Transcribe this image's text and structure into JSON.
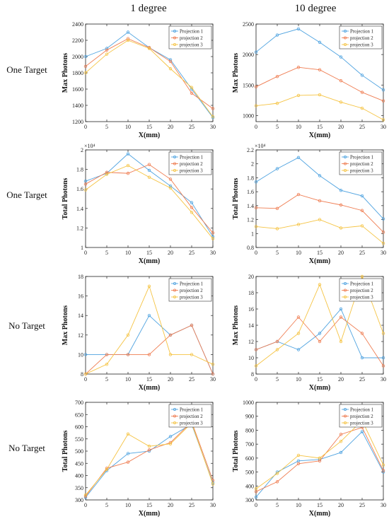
{
  "column_headers": [
    "1 degree",
    "10 degree"
  ],
  "row_labels": [
    "One Target",
    "One Target",
    "No Target",
    "No Target"
  ],
  "colors": {
    "projection_1": "#4fa3e0",
    "projection_2": "#ef7d52",
    "projection_3": "#f5c342"
  },
  "chart_data": [
    {
      "type": "line",
      "xlabel": "X(mm)",
      "ylabel": "Max Photons",
      "x": [
        0,
        5,
        10,
        15,
        20,
        25,
        30
      ],
      "xlim": [
        0,
        30
      ],
      "xticks": [
        0,
        5,
        10,
        15,
        20,
        25,
        30
      ],
      "ylim": [
        1200,
        2400
      ],
      "yticks": [
        1200,
        1400,
        1600,
        1800,
        2000,
        2200,
        2400
      ],
      "exponent": "",
      "legend": "top-right",
      "series": [
        {
          "name": "Projection 1",
          "values": [
            2000,
            2100,
            2300,
            2110,
            1960,
            1600,
            1250
          ]
        },
        {
          "name": "projection 2",
          "values": [
            1880,
            2080,
            2220,
            2110,
            1940,
            1550,
            1360
          ]
        },
        {
          "name": "projection 3",
          "values": [
            1800,
            2030,
            2200,
            2100,
            1850,
            1620,
            1260
          ]
        }
      ]
    },
    {
      "type": "line",
      "xlabel": "X(mm)",
      "ylabel": "Max Photons",
      "x": [
        0,
        5,
        10,
        15,
        20,
        25,
        30
      ],
      "xlim": [
        0,
        30
      ],
      "xticks": [
        0,
        5,
        10,
        15,
        20,
        25,
        30
      ],
      "ylim": [
        900,
        2500
      ],
      "yticks": [
        1000,
        1500,
        2000,
        2500
      ],
      "exponent": "",
      "legend": "top-right",
      "series": [
        {
          "name": "Projection 1",
          "values": [
            2040,
            2320,
            2420,
            2200,
            1960,
            1660,
            1420
          ]
        },
        {
          "name": "projection 2",
          "values": [
            1470,
            1640,
            1790,
            1750,
            1570,
            1380,
            1240
          ]
        },
        {
          "name": "projection 3",
          "values": [
            1160,
            1200,
            1330,
            1340,
            1220,
            1120,
            930
          ]
        }
      ]
    },
    {
      "type": "line",
      "xlabel": "X(mm)",
      "ylabel": "Total Photons",
      "x": [
        0,
        5,
        10,
        15,
        20,
        25,
        30
      ],
      "xlim": [
        0,
        30
      ],
      "xticks": [
        0,
        5,
        10,
        15,
        20,
        25,
        30
      ],
      "ylim": [
        1,
        2
      ],
      "yticks": [
        1,
        1.2,
        1.4,
        1.6,
        1.8,
        2
      ],
      "exponent": "×10⁴",
      "legend": "top-right",
      "series": [
        {
          "name": "Projection 1",
          "values": [
            1.68,
            1.76,
            1.96,
            1.79,
            1.63,
            1.46,
            1.11
          ]
        },
        {
          "name": "projection 2",
          "values": [
            1.65,
            1.77,
            1.76,
            1.85,
            1.7,
            1.41,
            1.15
          ]
        },
        {
          "name": "projection 3",
          "values": [
            1.59,
            1.75,
            1.84,
            1.72,
            1.61,
            1.36,
            1.09
          ]
        }
      ]
    },
    {
      "type": "line",
      "xlabel": "X(mm)",
      "ylabel": "Total Photons",
      "x": [
        0,
        5,
        10,
        15,
        20,
        25,
        30
      ],
      "xlim": [
        0,
        30
      ],
      "xticks": [
        0,
        5,
        10,
        15,
        20,
        25,
        30
      ],
      "ylim": [
        0.8,
        2.2
      ],
      "yticks": [
        0.8,
        1,
        1.2,
        1.4,
        1.6,
        1.8,
        2,
        2.2
      ],
      "exponent": "×10⁴",
      "legend": "top-right",
      "series": [
        {
          "name": "Projection 1",
          "values": [
            1.74,
            1.93,
            2.09,
            1.83,
            1.62,
            1.54,
            1.21
          ]
        },
        {
          "name": "projection 2",
          "values": [
            1.37,
            1.36,
            1.56,
            1.47,
            1.41,
            1.33,
            1.02
          ]
        },
        {
          "name": "projection 3",
          "values": [
            1.1,
            1.07,
            1.13,
            1.2,
            1.08,
            1.11,
            0.86
          ]
        }
      ]
    },
    {
      "type": "line",
      "xlabel": "X(mm)",
      "ylabel": "Max Photons",
      "x": [
        0,
        5,
        10,
        15,
        20,
        25,
        30
      ],
      "xlim": [
        0,
        30
      ],
      "xticks": [
        0,
        5,
        10,
        15,
        20,
        25,
        30
      ],
      "ylim": [
        8,
        18
      ],
      "yticks": [
        8,
        10,
        12,
        14,
        16,
        18
      ],
      "exponent": "",
      "legend": "top-right",
      "series": [
        {
          "name": "Projection 1",
          "values": [
            10,
            10,
            10,
            14,
            12,
            13,
            8
          ]
        },
        {
          "name": "projection 2",
          "values": [
            8,
            10,
            10,
            10,
            12,
            13,
            8
          ]
        },
        {
          "name": "projection 3",
          "values": [
            8,
            9,
            12,
            17,
            10,
            10,
            9
          ]
        }
      ]
    },
    {
      "type": "line",
      "xlabel": "X(mm)",
      "ylabel": "Max Photons",
      "x": [
        0,
        5,
        10,
        15,
        20,
        25,
        30
      ],
      "xlim": [
        0,
        30
      ],
      "xticks": [
        0,
        5,
        10,
        15,
        20,
        25,
        30
      ],
      "ylim": [
        8,
        20
      ],
      "yticks": [
        8,
        10,
        12,
        14,
        16,
        18,
        20
      ],
      "exponent": "",
      "legend": "top-right",
      "series": [
        {
          "name": "Projection 1",
          "values": [
            11,
            12,
            11,
            13,
            16,
            10,
            10
          ]
        },
        {
          "name": "projection 2",
          "values": [
            11,
            12,
            15,
            12,
            15,
            13,
            9
          ]
        },
        {
          "name": "projection 3",
          "values": [
            9,
            11,
            13,
            19,
            12,
            20,
            13
          ]
        }
      ]
    },
    {
      "type": "line",
      "xlabel": "X(mm)",
      "ylabel": "Total Photons",
      "x": [
        0,
        5,
        10,
        15,
        20,
        25,
        30
      ],
      "xlim": [
        0,
        30
      ],
      "xticks": [
        0,
        5,
        10,
        15,
        20,
        25,
        30
      ],
      "ylim": [
        300,
        700
      ],
      "yticks": [
        300,
        350,
        400,
        450,
        500,
        550,
        600,
        650,
        700
      ],
      "exponent": "",
      "legend": "top-right",
      "series": [
        {
          "name": "Projection 1",
          "values": [
            310,
            420,
            490,
            500,
            560,
            610,
            370
          ]
        },
        {
          "name": "projection 2",
          "values": [
            315,
            430,
            455,
            505,
            535,
            620,
            380
          ]
        },
        {
          "name": "projection 3",
          "values": [
            320,
            425,
            570,
            520,
            530,
            615,
            365
          ]
        }
      ]
    },
    {
      "type": "line",
      "xlabel": "X(mm)",
      "ylabel": "Total Photons",
      "x": [
        0,
        5,
        10,
        15,
        20,
        25,
        30
      ],
      "xlim": [
        0,
        30
      ],
      "xticks": [
        0,
        5,
        10,
        15,
        20,
        25,
        30
      ],
      "ylim": [
        300,
        1000
      ],
      "yticks": [
        300,
        400,
        500,
        600,
        700,
        800,
        900,
        1000
      ],
      "exponent": "",
      "legend": "top-right",
      "series": [
        {
          "name": "Projection 1",
          "values": [
            320,
            500,
            580,
            590,
            640,
            790,
            500
          ]
        },
        {
          "name": "projection 2",
          "values": [
            360,
            430,
            560,
            580,
            770,
            820,
            510
          ]
        },
        {
          "name": "projection 3",
          "values": [
            380,
            490,
            620,
            600,
            720,
            870,
            550
          ]
        }
      ]
    }
  ]
}
